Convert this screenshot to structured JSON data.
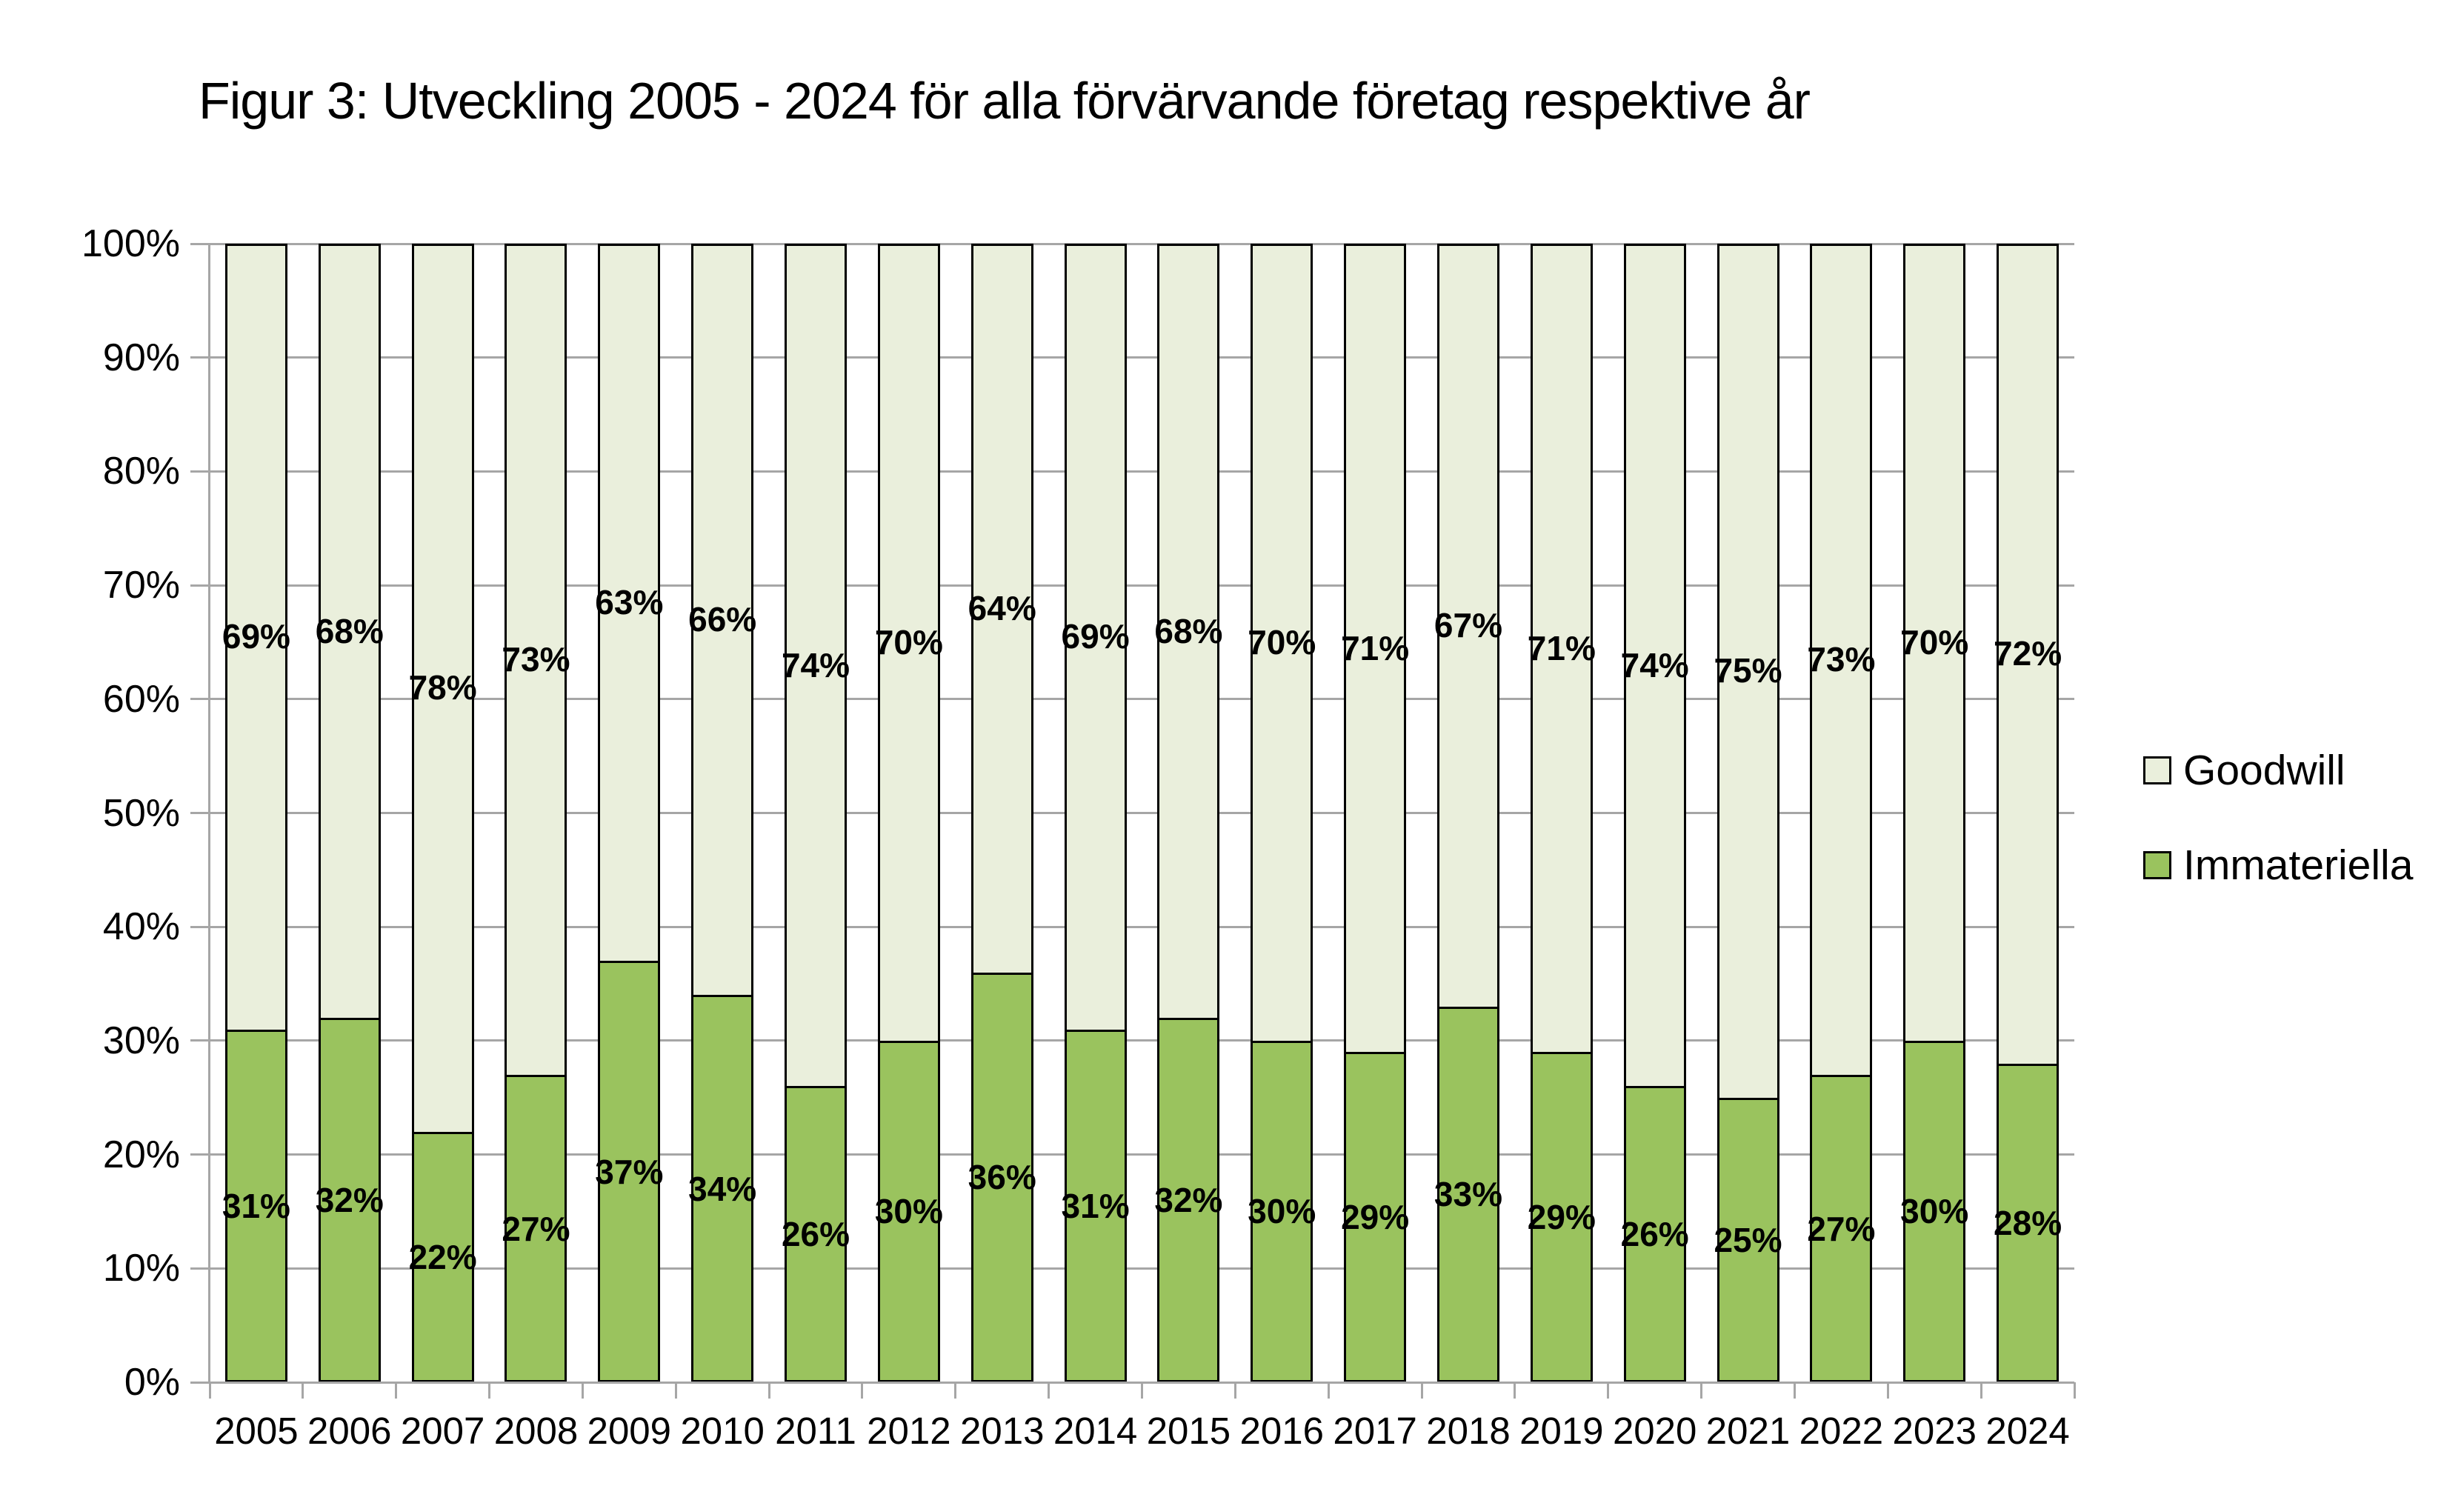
{
  "title": "Figur 3: Utveckling 2005 - 2024 för alla förvärvande företag respektive år",
  "legend": {
    "position": "right",
    "items": [
      {
        "label": "Goodwill",
        "color": "#EAEFDC"
      },
      {
        "label": "Immateriella",
        "color": "#9AC35E"
      }
    ]
  },
  "colors": {
    "background": "#FFFFFF",
    "grid": "#A6A6A6",
    "axis": "#A6A6A6",
    "bar_border": "#000000",
    "data_label": "#000000",
    "goodwill_fill": "#EAEFDC",
    "immateriella_fill": "#9AC35E"
  },
  "chart_data": {
    "type": "bar",
    "subtype": "stacked-100-percent-column",
    "title": "Figur 3: Utveckling 2005 - 2024 för alla förvärvande företag respektive år",
    "categories": [
      "2005",
      "2006",
      "2007",
      "2008",
      "2009",
      "2010",
      "2011",
      "2012",
      "2013",
      "2014",
      "2015",
      "2016",
      "2017",
      "2018",
      "2019",
      "2020",
      "2021",
      "2022",
      "2023",
      "2024"
    ],
    "series": [
      {
        "name": "Immateriella",
        "stack_position": "bottom",
        "color": "#9AC35E",
        "values": [
          31,
          32,
          22,
          27,
          37,
          34,
          26,
          30,
          36,
          31,
          32,
          30,
          29,
          33,
          29,
          26,
          25,
          27,
          30,
          28
        ],
        "labels": [
          "31%",
          "32%",
          "22%",
          "27%",
          "37%",
          "34%",
          "26%",
          "30%",
          "36%",
          "31%",
          "32%",
          "30%",
          "29%",
          "33%",
          "29%",
          "26%",
          "25%",
          "27%",
          "30%",
          "28%"
        ]
      },
      {
        "name": "Goodwill",
        "stack_position": "top",
        "color": "#EAEFDC",
        "values": [
          69,
          68,
          78,
          73,
          63,
          66,
          74,
          70,
          64,
          69,
          68,
          70,
          71,
          67,
          71,
          74,
          75,
          73,
          70,
          72
        ],
        "labels": [
          "69%",
          "68%",
          "78%",
          "73%",
          "63%",
          "66%",
          "74%",
          "70%",
          "64%",
          "69%",
          "68%",
          "70%",
          "71%",
          "67%",
          "71%",
          "74%",
          "75%",
          "73%",
          "70%",
          "72%"
        ]
      }
    ],
    "xlabel": "",
    "ylabel": "",
    "ylim": [
      0,
      100
    ],
    "y_ticks": [
      "0%",
      "10%",
      "20%",
      "30%",
      "40%",
      "50%",
      "60%",
      "70%",
      "80%",
      "90%",
      "100%"
    ],
    "grid": true,
    "data_labels": "center",
    "legend_position": "right",
    "legend_entries": [
      "Goodwill",
      "Immateriella"
    ]
  }
}
